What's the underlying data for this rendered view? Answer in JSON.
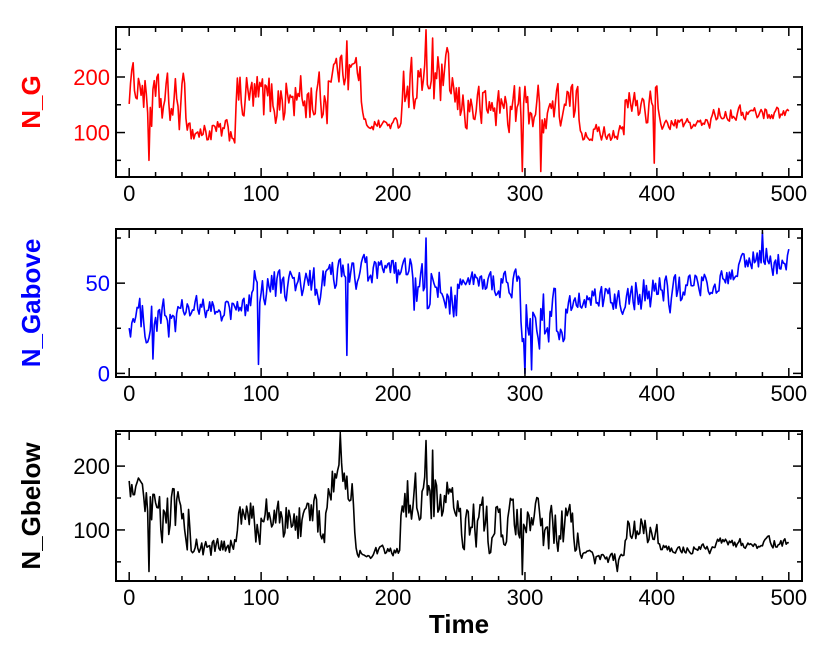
{
  "chart_data": [
    {
      "type": "line",
      "ylabel": "N_G",
      "xlabel": "",
      "color": "#ff0000",
      "xlim": [
        -10,
        510
      ],
      "ylim": [
        20,
        290
      ],
      "xticks": [
        0,
        100,
        200,
        300,
        400,
        500
      ],
      "yticks": [
        100,
        200
      ],
      "xtick_labels": [
        "0",
        "100",
        "200",
        "300",
        "400",
        "500"
      ],
      "ytick_labels": [
        "100",
        "200"
      ],
      "series": [
        {
          "name": "N_G",
          "segments": [
            {
              "start": 0,
              "end": 10,
              "mean": 190,
              "amp": 45
            },
            {
              "start": 10,
              "end": 45,
              "mean": 150,
              "amp": 70
            },
            {
              "start": 45,
              "end": 80,
              "mean": 100,
              "amp": 30
            },
            {
              "start": 80,
              "end": 150,
              "mean": 160,
              "amp": 65
            },
            {
              "start": 150,
              "end": 175,
              "mean": 215,
              "amp": 45
            },
            {
              "start": 175,
              "end": 205,
              "mean": 115,
              "amp": 15
            },
            {
              "start": 205,
              "end": 245,
              "mean": 190,
              "amp": 70
            },
            {
              "start": 245,
              "end": 340,
              "mean": 145,
              "amp": 60
            },
            {
              "start": 340,
              "end": 375,
              "mean": 100,
              "amp": 20
            },
            {
              "start": 375,
              "end": 400,
              "mean": 150,
              "amp": 45
            },
            {
              "start": 400,
              "end": 440,
              "mean": 115,
              "amp": 15
            },
            {
              "start": 440,
              "end": 500,
              "mean": 135,
              "amp": 18
            }
          ],
          "spikes": [
            [
              15,
              50
            ],
            [
              225,
              285
            ],
            [
              230,
              270
            ],
            [
              298,
              30
            ],
            [
              312,
              30
            ],
            [
              398,
              45
            ],
            [
              165,
              265
            ]
          ]
        }
      ]
    },
    {
      "type": "line",
      "ylabel": "N_Gabove",
      "xlabel": "",
      "color": "#0000ff",
      "xlim": [
        -10,
        510
      ],
      "ylim": [
        -2,
        80
      ],
      "xticks": [
        0,
        100,
        200,
        300,
        400,
        500
      ],
      "yticks": [
        0,
        50
      ],
      "xtick_labels": [
        "0",
        "100",
        "200",
        "300",
        "400",
        "500"
      ],
      "ytick_labels": [
        "0",
        "50"
      ],
      "series": [
        {
          "name": "N_Gabove",
          "segments": [
            {
              "start": 0,
              "end": 40,
              "mean": 30,
              "amp": 15
            },
            {
              "start": 40,
              "end": 90,
              "mean": 35,
              "amp": 10
            },
            {
              "start": 90,
              "end": 150,
              "mean": 48,
              "amp": 15
            },
            {
              "start": 150,
              "end": 215,
              "mean": 55,
              "amp": 12
            },
            {
              "start": 215,
              "end": 250,
              "mean": 45,
              "amp": 20
            },
            {
              "start": 250,
              "end": 295,
              "mean": 50,
              "amp": 10
            },
            {
              "start": 295,
              "end": 330,
              "mean": 30,
              "amp": 22
            },
            {
              "start": 330,
              "end": 370,
              "mean": 40,
              "amp": 10
            },
            {
              "start": 370,
              "end": 420,
              "mean": 45,
              "amp": 15
            },
            {
              "start": 420,
              "end": 460,
              "mean": 50,
              "amp": 10
            },
            {
              "start": 460,
              "end": 500,
              "mean": 62,
              "amp": 12
            }
          ],
          "spikes": [
            [
              98,
              5
            ],
            [
              300,
              0
            ],
            [
              305,
              2
            ],
            [
              225,
              75
            ],
            [
              480,
              78
            ],
            [
              18,
              8
            ],
            [
              165,
              10
            ]
          ]
        }
      ]
    },
    {
      "type": "line",
      "ylabel": "N_Gbelow",
      "xlabel": "Time",
      "color": "#000000",
      "xlim": [
        -10,
        510
      ],
      "ylim": [
        20,
        255
      ],
      "xticks": [
        0,
        100,
        200,
        300,
        400,
        500
      ],
      "yticks": [
        100,
        200
      ],
      "xtick_labels": [
        "0",
        "100",
        "200",
        "300",
        "400",
        "500"
      ],
      "ytick_labels": [
        "100",
        "200"
      ],
      "series": [
        {
          "name": "N_Gbelow",
          "segments": [
            {
              "start": 0,
              "end": 10,
              "mean": 160,
              "amp": 25
            },
            {
              "start": 10,
              "end": 45,
              "mean": 120,
              "amp": 60
            },
            {
              "start": 45,
              "end": 80,
              "mean": 70,
              "amp": 25
            },
            {
              "start": 80,
              "end": 150,
              "mean": 115,
              "amp": 50
            },
            {
              "start": 150,
              "end": 170,
              "mean": 170,
              "amp": 50
            },
            {
              "start": 170,
              "end": 205,
              "mean": 65,
              "amp": 12
            },
            {
              "start": 205,
              "end": 245,
              "mean": 150,
              "amp": 60
            },
            {
              "start": 245,
              "end": 340,
              "mean": 105,
              "amp": 55
            },
            {
              "start": 340,
              "end": 375,
              "mean": 55,
              "amp": 15
            },
            {
              "start": 375,
              "end": 400,
              "mean": 100,
              "amp": 30
            },
            {
              "start": 400,
              "end": 440,
              "mean": 70,
              "amp": 10
            },
            {
              "start": 440,
              "end": 500,
              "mean": 80,
              "amp": 12
            }
          ],
          "spikes": [
            [
              160,
              250
            ],
            [
              225,
              240
            ],
            [
              230,
              225
            ],
            [
              298,
              30
            ],
            [
              370,
              35
            ],
            [
              15,
              35
            ]
          ]
        }
      ]
    }
  ]
}
